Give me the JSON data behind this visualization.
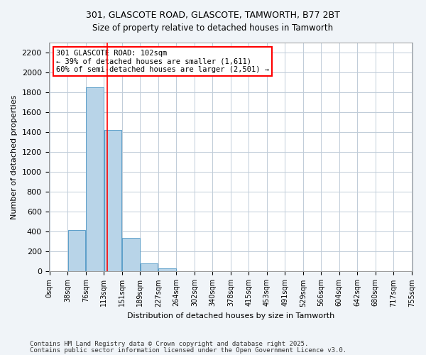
{
  "title_line1": "301, GLASCOTE ROAD, GLASCOTE, TAMWORTH, B77 2BT",
  "title_line2": "Size of property relative to detached houses in Tamworth",
  "xlabel": "Distribution of detached houses by size in Tamworth",
  "ylabel": "Number of detached properties",
  "bar_color": "#b8d4e8",
  "bar_edge_color": "#5a9ec9",
  "bin_labels": [
    "0sqm",
    "38sqm",
    "76sqm",
    "113sqm",
    "151sqm",
    "189sqm",
    "227sqm",
    "264sqm",
    "302sqm",
    "340sqm",
    "378sqm",
    "415sqm",
    "453sqm",
    "491sqm",
    "529sqm",
    "566sqm",
    "604sqm",
    "642sqm",
    "680sqm",
    "717sqm",
    "755sqm"
  ],
  "bar_heights": [
    0,
    420,
    1850,
    1420,
    340,
    80,
    30,
    5,
    2,
    1,
    0,
    0,
    0,
    0,
    0,
    0,
    0,
    0,
    0,
    0
  ],
  "ylim": [
    0,
    2300
  ],
  "yticks": [
    0,
    200,
    400,
    600,
    800,
    1000,
    1200,
    1400,
    1600,
    1800,
    2000,
    2200
  ],
  "red_line_x": 2.68,
  "annotation_text": "301 GLASCOTE ROAD: 102sqm\n← 39% of detached houses are smaller (1,611)\n60% of semi-detached houses are larger (2,501) →",
  "footer_line1": "Contains HM Land Registry data © Crown copyright and database right 2025.",
  "footer_line2": "Contains public sector information licensed under the Open Government Licence v3.0.",
  "background_color": "#f0f4f8",
  "plot_bg_color": "#ffffff",
  "grid_color": "#c0ccd8"
}
